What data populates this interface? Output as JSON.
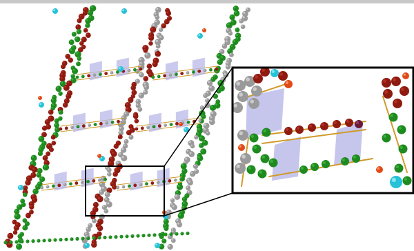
{
  "figure": {
    "colors": {
      "background": "#ffffff",
      "top_strip": "#c8c8c8",
      "red_atom": "#8e1a10",
      "red_atom_highlight": "#c0392b",
      "green_atom": "#1f8a1f",
      "green_atom_highlight": "#3fbf3f",
      "gray_atom": "#9a9a9a",
      "cyan_atom": "#27c2d8",
      "orange_atom": "#e04a17",
      "purple_atom": "#6b1a3a",
      "bond": "#d09a2a",
      "plane_fill": "#b8b8e8",
      "inset_frame": "#000000"
    },
    "icons": [
      "red-atom-icon",
      "green-atom-icon",
      "gray-atom-icon",
      "cyan-atom-icon",
      "orange-atom-icon",
      "purple-atom-icon",
      "plane-icon"
    ]
  }
}
